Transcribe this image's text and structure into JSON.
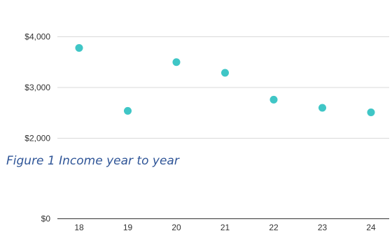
{
  "caption": "Figure 1 Income year to year",
  "chart_data": {
    "type": "scatter",
    "title": "",
    "xlabel": "",
    "ylabel": "",
    "x": [
      "18",
      "19",
      "20",
      "21",
      "22",
      "23",
      "24"
    ],
    "series": [
      {
        "values": [
          3780,
          2540,
          3500,
          3290,
          2760,
          2600,
          2510
        ]
      }
    ],
    "y_ticks": [
      {
        "value": 4000,
        "label": "$4,000"
      },
      {
        "value": 3000,
        "label": "$3,000"
      },
      {
        "value": 2000,
        "label": "$2,000"
      },
      {
        "value": 0,
        "label": "$0"
      }
    ],
    "grid": true,
    "legend": "none",
    "colors": {
      "marker": "#3fc6c6",
      "grid": "#d9d9d9",
      "axis": "#333333",
      "caption": "#2f5597"
    }
  }
}
